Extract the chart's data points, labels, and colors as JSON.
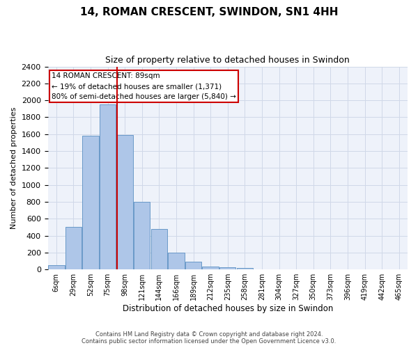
{
  "title": "14, ROMAN CRESCENT, SWINDON, SN1 4HH",
  "subtitle": "Size of property relative to detached houses in Swindon",
  "xlabel": "Distribution of detached houses by size in Swindon",
  "ylabel": "Number of detached properties",
  "footer_line1": "Contains HM Land Registry data © Crown copyright and database right 2024.",
  "footer_line2": "Contains public sector information licensed under the Open Government Licence v3.0.",
  "bar_labels": [
    "6sqm",
    "29sqm",
    "52sqm",
    "75sqm",
    "98sqm",
    "121sqm",
    "144sqm",
    "166sqm",
    "189sqm",
    "212sqm",
    "235sqm",
    "258sqm",
    "281sqm",
    "304sqm",
    "327sqm",
    "350sqm",
    "373sqm",
    "396sqm",
    "419sqm",
    "442sqm",
    "465sqm"
  ],
  "bar_values": [
    50,
    500,
    1580,
    1950,
    1590,
    800,
    480,
    200,
    90,
    35,
    25,
    15,
    5,
    5,
    0,
    0,
    0,
    0,
    0,
    0,
    0
  ],
  "bar_color": "#aec6e8",
  "bar_edge_color": "#5a8fc2",
  "grid_color": "#d0d8e8",
  "bg_color": "#eef2fa",
  "vline_color": "#cc0000",
  "vline_x": 3.55,
  "annotation_text": "14 ROMAN CRESCENT: 89sqm\n← 19% of detached houses are smaller (1,371)\n80% of semi-detached houses are larger (5,840) →",
  "annotation_box_color": "#ffffff",
  "annotation_box_edge": "#cc0000",
  "ylim": [
    0,
    2400
  ],
  "yticks": [
    0,
    200,
    400,
    600,
    800,
    1000,
    1200,
    1400,
    1600,
    1800,
    2000,
    2200,
    2400
  ],
  "title_fontsize": 11,
  "subtitle_fontsize": 9
}
